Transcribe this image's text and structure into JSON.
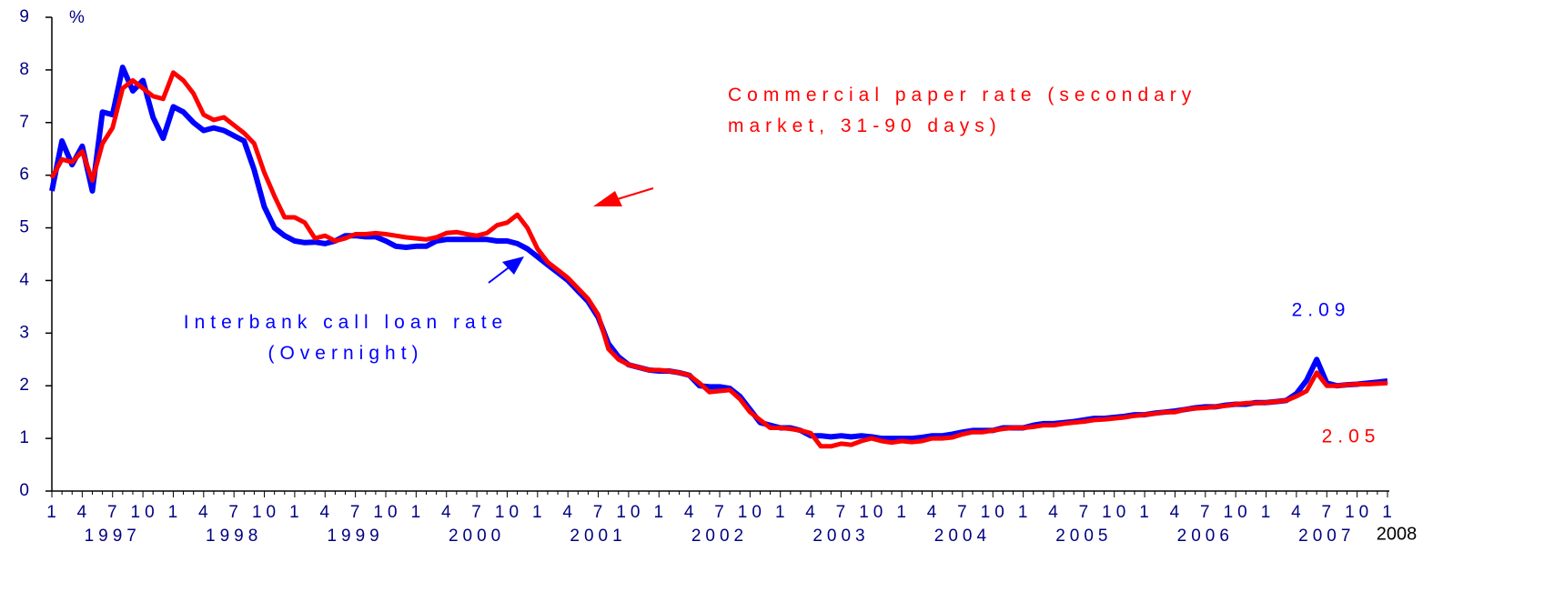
{
  "chart_data": {
    "type": "line",
    "y_label": "%",
    "ylim": [
      0,
      9
    ],
    "yticks": [
      0,
      1,
      2,
      3,
      4,
      5,
      6,
      7,
      8,
      9
    ],
    "categories": [
      "1",
      null,
      null,
      "4",
      null,
      null,
      "7",
      null,
      null,
      "10",
      null,
      null,
      "1",
      null,
      null,
      "4",
      null,
      null,
      "7",
      null,
      null,
      "10",
      null,
      null,
      "1",
      null,
      null,
      "4",
      null,
      null,
      "7",
      null,
      null,
      "10",
      null,
      null,
      "1",
      null,
      null,
      "4",
      null,
      null,
      "7",
      null,
      null,
      "10",
      null,
      null,
      "1",
      null,
      null,
      "4",
      null,
      null,
      "7",
      null,
      null,
      "10",
      null,
      null,
      "1",
      null,
      null,
      "4",
      null,
      null,
      "7",
      null,
      null,
      "10",
      null,
      null,
      "1",
      null,
      null,
      "4",
      null,
      null,
      "7",
      null,
      null,
      "10",
      null,
      null,
      "1",
      null,
      null,
      "4",
      null,
      null,
      "7",
      null,
      null,
      "10",
      null,
      null,
      "1",
      null,
      null,
      "4",
      null,
      null,
      "7",
      null,
      null,
      "10",
      null,
      null,
      "1",
      null,
      null,
      "4",
      null,
      null,
      "7",
      null,
      null,
      "10",
      null,
      null,
      "1",
      null,
      null,
      "4",
      null,
      null,
      "7",
      null,
      null,
      "10",
      null,
      null,
      "1"
    ],
    "year_labels": [
      "1997",
      "1998",
      "1999",
      "2000",
      "2001",
      "2002",
      "2003",
      "2004",
      "2005",
      "2006",
      "2007",
      "2008"
    ],
    "series": [
      {
        "name": "Interbank call loan rate (Overnight)",
        "color": "#0000ff",
        "end_label": "2.09",
        "values": [
          5.7,
          6.65,
          6.2,
          6.55,
          5.7,
          7.2,
          7.15,
          8.05,
          7.6,
          7.8,
          7.1,
          6.7,
          7.3,
          7.2,
          7.0,
          6.85,
          6.9,
          6.85,
          6.75,
          6.65,
          6.1,
          5.4,
          5.0,
          4.85,
          4.75,
          4.72,
          4.73,
          4.7,
          4.75,
          4.85,
          4.85,
          4.83,
          4.83,
          4.75,
          4.65,
          4.63,
          4.65,
          4.65,
          4.75,
          4.78,
          4.78,
          4.78,
          4.78,
          4.78,
          4.75,
          4.75,
          4.7,
          4.6,
          4.45,
          4.3,
          4.15,
          4.0,
          3.8,
          3.6,
          3.3,
          2.8,
          2.55,
          2.4,
          2.35,
          2.3,
          2.28,
          2.28,
          2.25,
          2.2,
          2.0,
          1.98,
          1.98,
          1.95,
          1.8,
          1.55,
          1.3,
          1.25,
          1.2,
          1.2,
          1.15,
          1.05,
          1.05,
          1.03,
          1.05,
          1.03,
          1.05,
          1.03,
          1.0,
          1.0,
          1.0,
          1.0,
          1.02,
          1.05,
          1.05,
          1.08,
          1.12,
          1.15,
          1.15,
          1.15,
          1.2,
          1.2,
          1.2,
          1.25,
          1.28,
          1.28,
          1.3,
          1.32,
          1.35,
          1.38,
          1.38,
          1.4,
          1.42,
          1.45,
          1.45,
          1.48,
          1.5,
          1.52,
          1.55,
          1.58,
          1.6,
          1.6,
          1.63,
          1.65,
          1.65,
          1.68,
          1.68,
          1.7,
          1.72,
          1.85,
          2.1,
          2.5,
          2.05,
          2.0,
          2.02,
          2.03,
          2.05,
          2.07,
          2.09
        ]
      },
      {
        "name": "Commercial paper rate (secondary market, 31-90 days)",
        "color": "#ff0000",
        "end_label": "2.05",
        "values": [
          5.95,
          6.3,
          6.25,
          6.45,
          5.9,
          6.6,
          6.9,
          7.65,
          7.8,
          7.65,
          7.5,
          7.45,
          7.95,
          7.8,
          7.55,
          7.15,
          7.05,
          7.1,
          6.95,
          6.8,
          6.6,
          6.05,
          5.6,
          5.2,
          5.2,
          5.1,
          4.8,
          4.85,
          4.75,
          4.8,
          4.88,
          4.88,
          4.9,
          4.88,
          4.85,
          4.82,
          4.8,
          4.78,
          4.82,
          4.9,
          4.92,
          4.88,
          4.85,
          4.9,
          5.05,
          5.1,
          5.25,
          5.0,
          4.6,
          4.35,
          4.2,
          4.05,
          3.85,
          3.65,
          3.35,
          2.7,
          2.5,
          2.4,
          2.35,
          2.3,
          2.3,
          2.28,
          2.25,
          2.2,
          2.05,
          1.88,
          1.9,
          1.92,
          1.75,
          1.5,
          1.35,
          1.2,
          1.2,
          1.18,
          1.15,
          1.1,
          0.85,
          0.85,
          0.9,
          0.88,
          0.95,
          1.0,
          0.95,
          0.92,
          0.95,
          0.93,
          0.95,
          1.0,
          1.0,
          1.02,
          1.08,
          1.12,
          1.12,
          1.15,
          1.18,
          1.2,
          1.2,
          1.22,
          1.25,
          1.25,
          1.28,
          1.3,
          1.32,
          1.35,
          1.36,
          1.38,
          1.4,
          1.43,
          1.45,
          1.47,
          1.5,
          1.5,
          1.55,
          1.57,
          1.58,
          1.6,
          1.62,
          1.65,
          1.67,
          1.67,
          1.68,
          1.7,
          1.72,
          1.8,
          1.9,
          2.25,
          2.0,
          2.0,
          2.02,
          2.03,
          2.03,
          2.04,
          2.05
        ]
      }
    ]
  }
}
